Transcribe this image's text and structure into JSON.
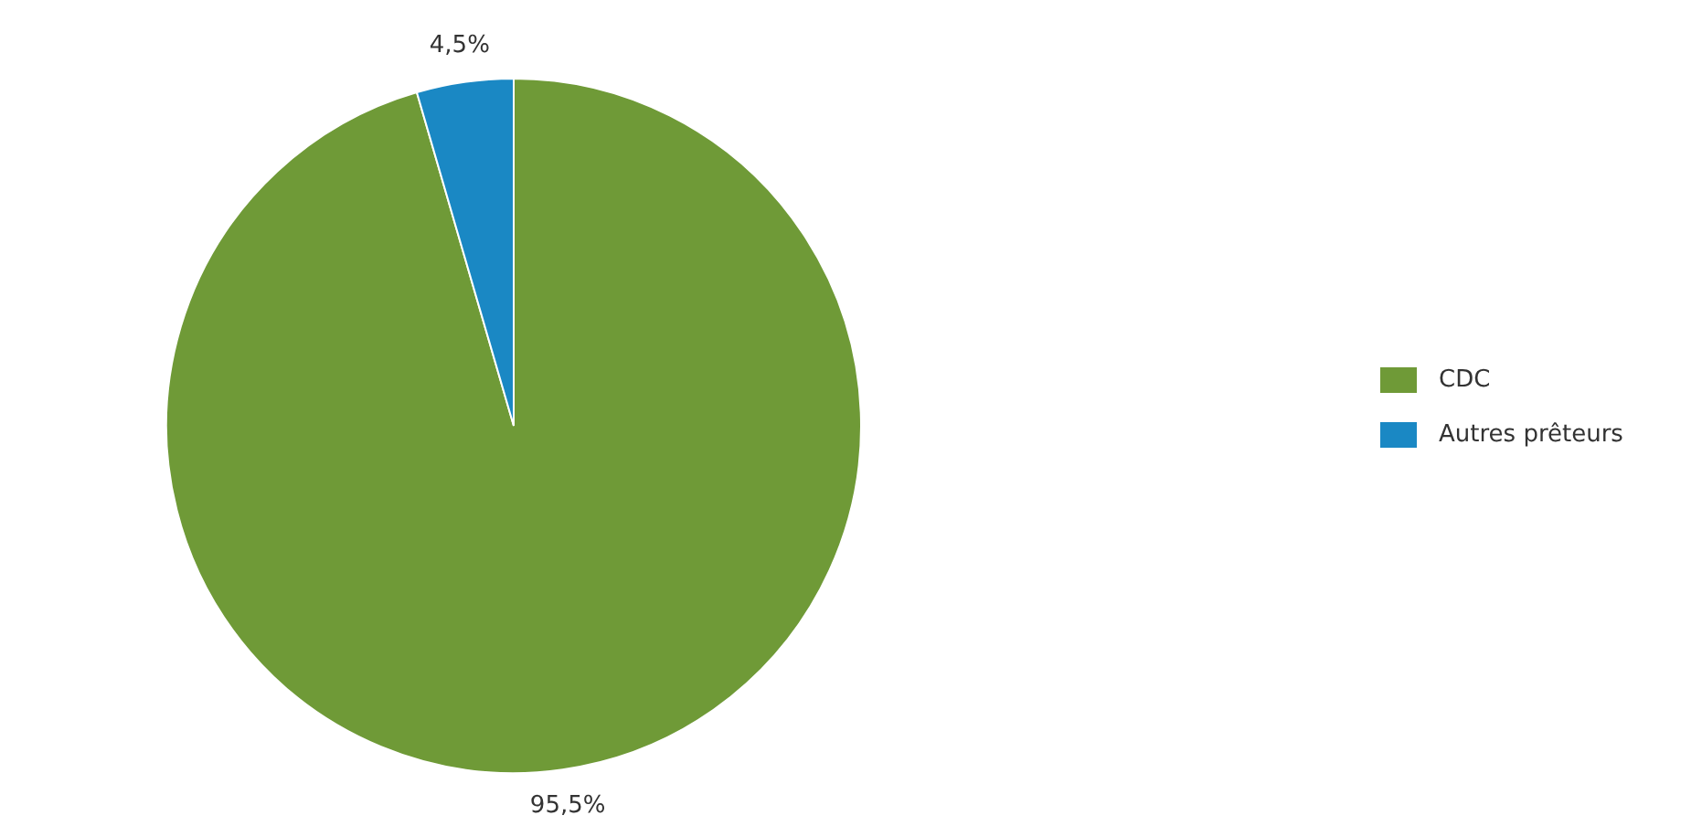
{
  "chart_data": {
    "type": "pie",
    "categories": [
      "CDC",
      "Autres prêteurs"
    ],
    "values": [
      95.5,
      4.5
    ],
    "value_labels": [
      "95,5%",
      "4,5%"
    ],
    "colors": [
      "#6f9a37",
      "#1a88c4"
    ],
    "legend": "right"
  }
}
